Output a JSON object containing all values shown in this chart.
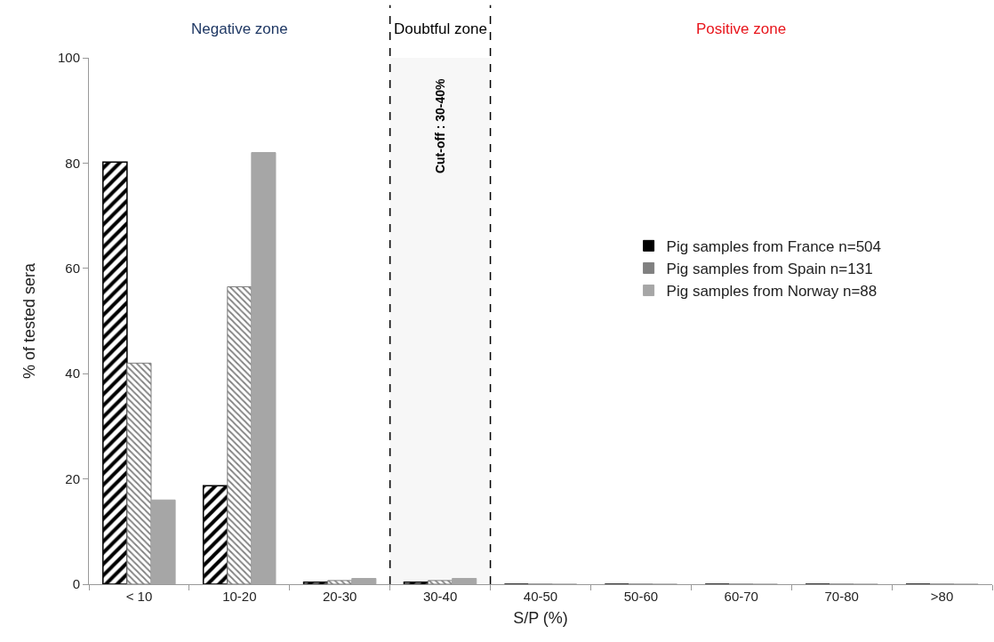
{
  "chart_data": {
    "type": "bar",
    "xlabel": "S/P (%)",
    "ylabel": "% of tested sera",
    "categories": [
      "< 10",
      "10-20",
      "20-30",
      "30-40",
      "40-50",
      "50-60",
      "60-70",
      "70-80",
      ">80"
    ],
    "series": [
      {
        "name": "Pig samples from France n=504",
        "color": "#000000",
        "values": [
          80.2,
          18.7,
          0.4,
          0.4,
          0,
          0,
          0,
          0,
          0
        ]
      },
      {
        "name": "Pig samples from Spain n=131",
        "color": "#808080",
        "values": [
          42,
          56.5,
          0.7,
          0.7,
          0,
          0,
          0,
          0,
          0
        ]
      },
      {
        "name": "Pig samples from Norway n=88",
        "color": "#a6a6a6",
        "values": [
          16,
          82,
          1.1,
          1.1,
          0,
          0,
          0,
          0,
          0
        ]
      }
    ],
    "ylim": [
      0,
      100
    ],
    "yticks": [
      0,
      20,
      40,
      60,
      80,
      100
    ],
    "bands": [
      {
        "axis": "x",
        "from": "30-40",
        "to": "30-40",
        "label": "Doubtful zone",
        "color": "#f7f7f7"
      }
    ],
    "annotations": [
      "Negative zone",
      "Positive zone",
      "Cut-off : 30-40%"
    ],
    "grid": false,
    "legend": "right"
  }
}
